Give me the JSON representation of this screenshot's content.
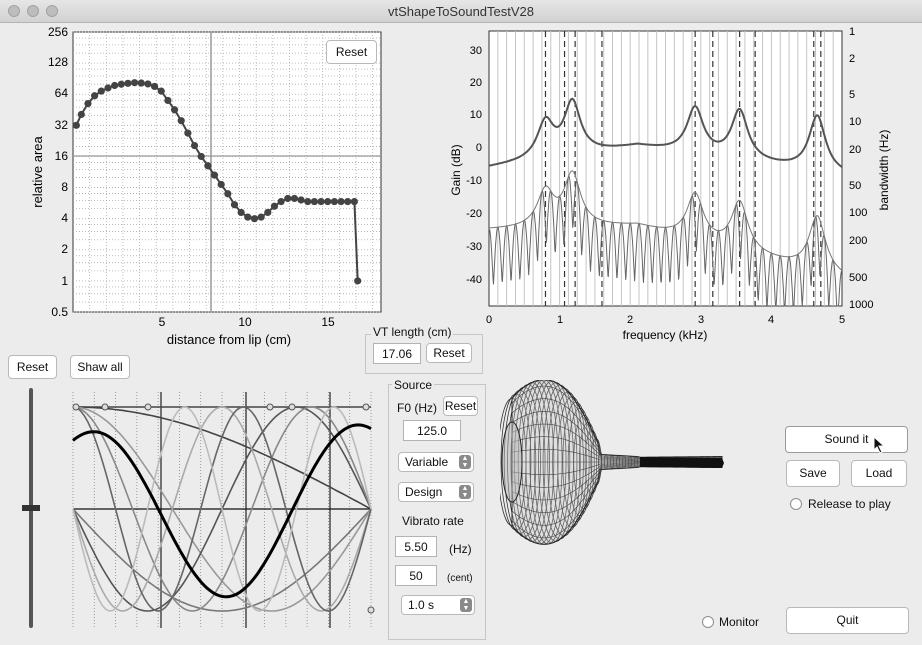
{
  "window": {
    "title": "vtShapeToSoundTestV28"
  },
  "area_plot": {
    "ylabel": "relative area",
    "xlabel": "distance from lip (cm)",
    "yticks": [
      "256",
      "128",
      "64",
      "32",
      "16",
      "8",
      "4",
      "2",
      "1",
      "0.5"
    ],
    "xticks": [
      "5",
      "10",
      "15"
    ],
    "reset_label": "Reset"
  },
  "spectrum_plot": {
    "ylabel": "Gain (dB)",
    "y2label": "bandwidth (Hz)",
    "xlabel": "frequency (kHz)",
    "yticks": [
      "30",
      "20",
      "10",
      "0",
      "-10",
      "-20",
      "-30",
      "-40"
    ],
    "y2ticks": [
      "1",
      "2",
      "5",
      "10",
      "20",
      "50",
      "100",
      "200",
      "500",
      "1000"
    ],
    "xticks": [
      "0",
      "1",
      "2",
      "3",
      "4",
      "5"
    ]
  },
  "vt_length": {
    "label": "VT length (cm)",
    "value": "17.06",
    "reset_label": "Reset"
  },
  "source": {
    "label": "Source",
    "f0_label": "F0 (Hz)",
    "f0_reset_label": "Reset",
    "f0_value": "125.0",
    "mode_select": "Variable",
    "design_select": "Design",
    "vibrato_label": "Vibrato rate",
    "vibrato_value": "5.50",
    "vibrato_unit": "(Hz)",
    "depth_value": "50",
    "depth_unit": "(cent)",
    "duration_select": "1.0 s"
  },
  "basis_panel": {
    "reset_label": "Reset",
    "show_all_label": "Shaw all"
  },
  "controls": {
    "sound_it_label": "Sound it",
    "save_label": "Save",
    "load_label": "Load",
    "release_label": "Release to play",
    "monitor_label": "Monitor",
    "quit_label": "Quit"
  },
  "colors": {
    "curve": "#555555",
    "grid": "#b0b0b0",
    "marker": "#444444"
  }
}
